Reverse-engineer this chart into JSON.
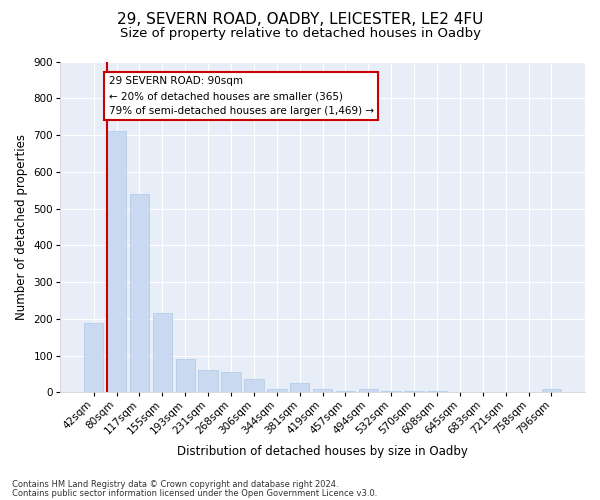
{
  "title1": "29, SEVERN ROAD, OADBY, LEICESTER, LE2 4FU",
  "title2": "Size of property relative to detached houses in Oadby",
  "xlabel": "Distribution of detached houses by size in Oadby",
  "ylabel": "Number of detached properties",
  "categories": [
    "42sqm",
    "80sqm",
    "117sqm",
    "155sqm",
    "193sqm",
    "231sqm",
    "268sqm",
    "306sqm",
    "344sqm",
    "381sqm",
    "419sqm",
    "457sqm",
    "494sqm",
    "532sqm",
    "570sqm",
    "608sqm",
    "645sqm",
    "683sqm",
    "721sqm",
    "758sqm",
    "796sqm"
  ],
  "values": [
    190,
    710,
    540,
    215,
    90,
    60,
    55,
    35,
    10,
    25,
    10,
    5,
    10,
    5,
    5,
    5,
    0,
    0,
    0,
    0,
    10
  ],
  "bar_color": "#c9daf0",
  "bar_edge_color": "#b0c8e8",
  "vline_color": "#cc0000",
  "vline_x": 1.5,
  "annotation_text": "29 SEVERN ROAD: 90sqm\n← 20% of detached houses are smaller (365)\n79% of semi-detached houses are larger (1,469) →",
  "annotation_box_color": "#ffffff",
  "annotation_box_edge": "#cc0000",
  "ylim": [
    0,
    900
  ],
  "yticks": [
    0,
    100,
    200,
    300,
    400,
    500,
    600,
    700,
    800,
    900
  ],
  "footer1": "Contains HM Land Registry data © Crown copyright and database right 2024.",
  "footer2": "Contains public sector information licensed under the Open Government Licence v3.0.",
  "bg_color": "#e8eef8",
  "title1_fontsize": 11,
  "title2_fontsize": 9.5,
  "xlabel_fontsize": 8.5,
  "ylabel_fontsize": 8.5,
  "tick_fontsize": 7.5,
  "annotation_fontsize": 7.5,
  "footer_fontsize": 6.0
}
